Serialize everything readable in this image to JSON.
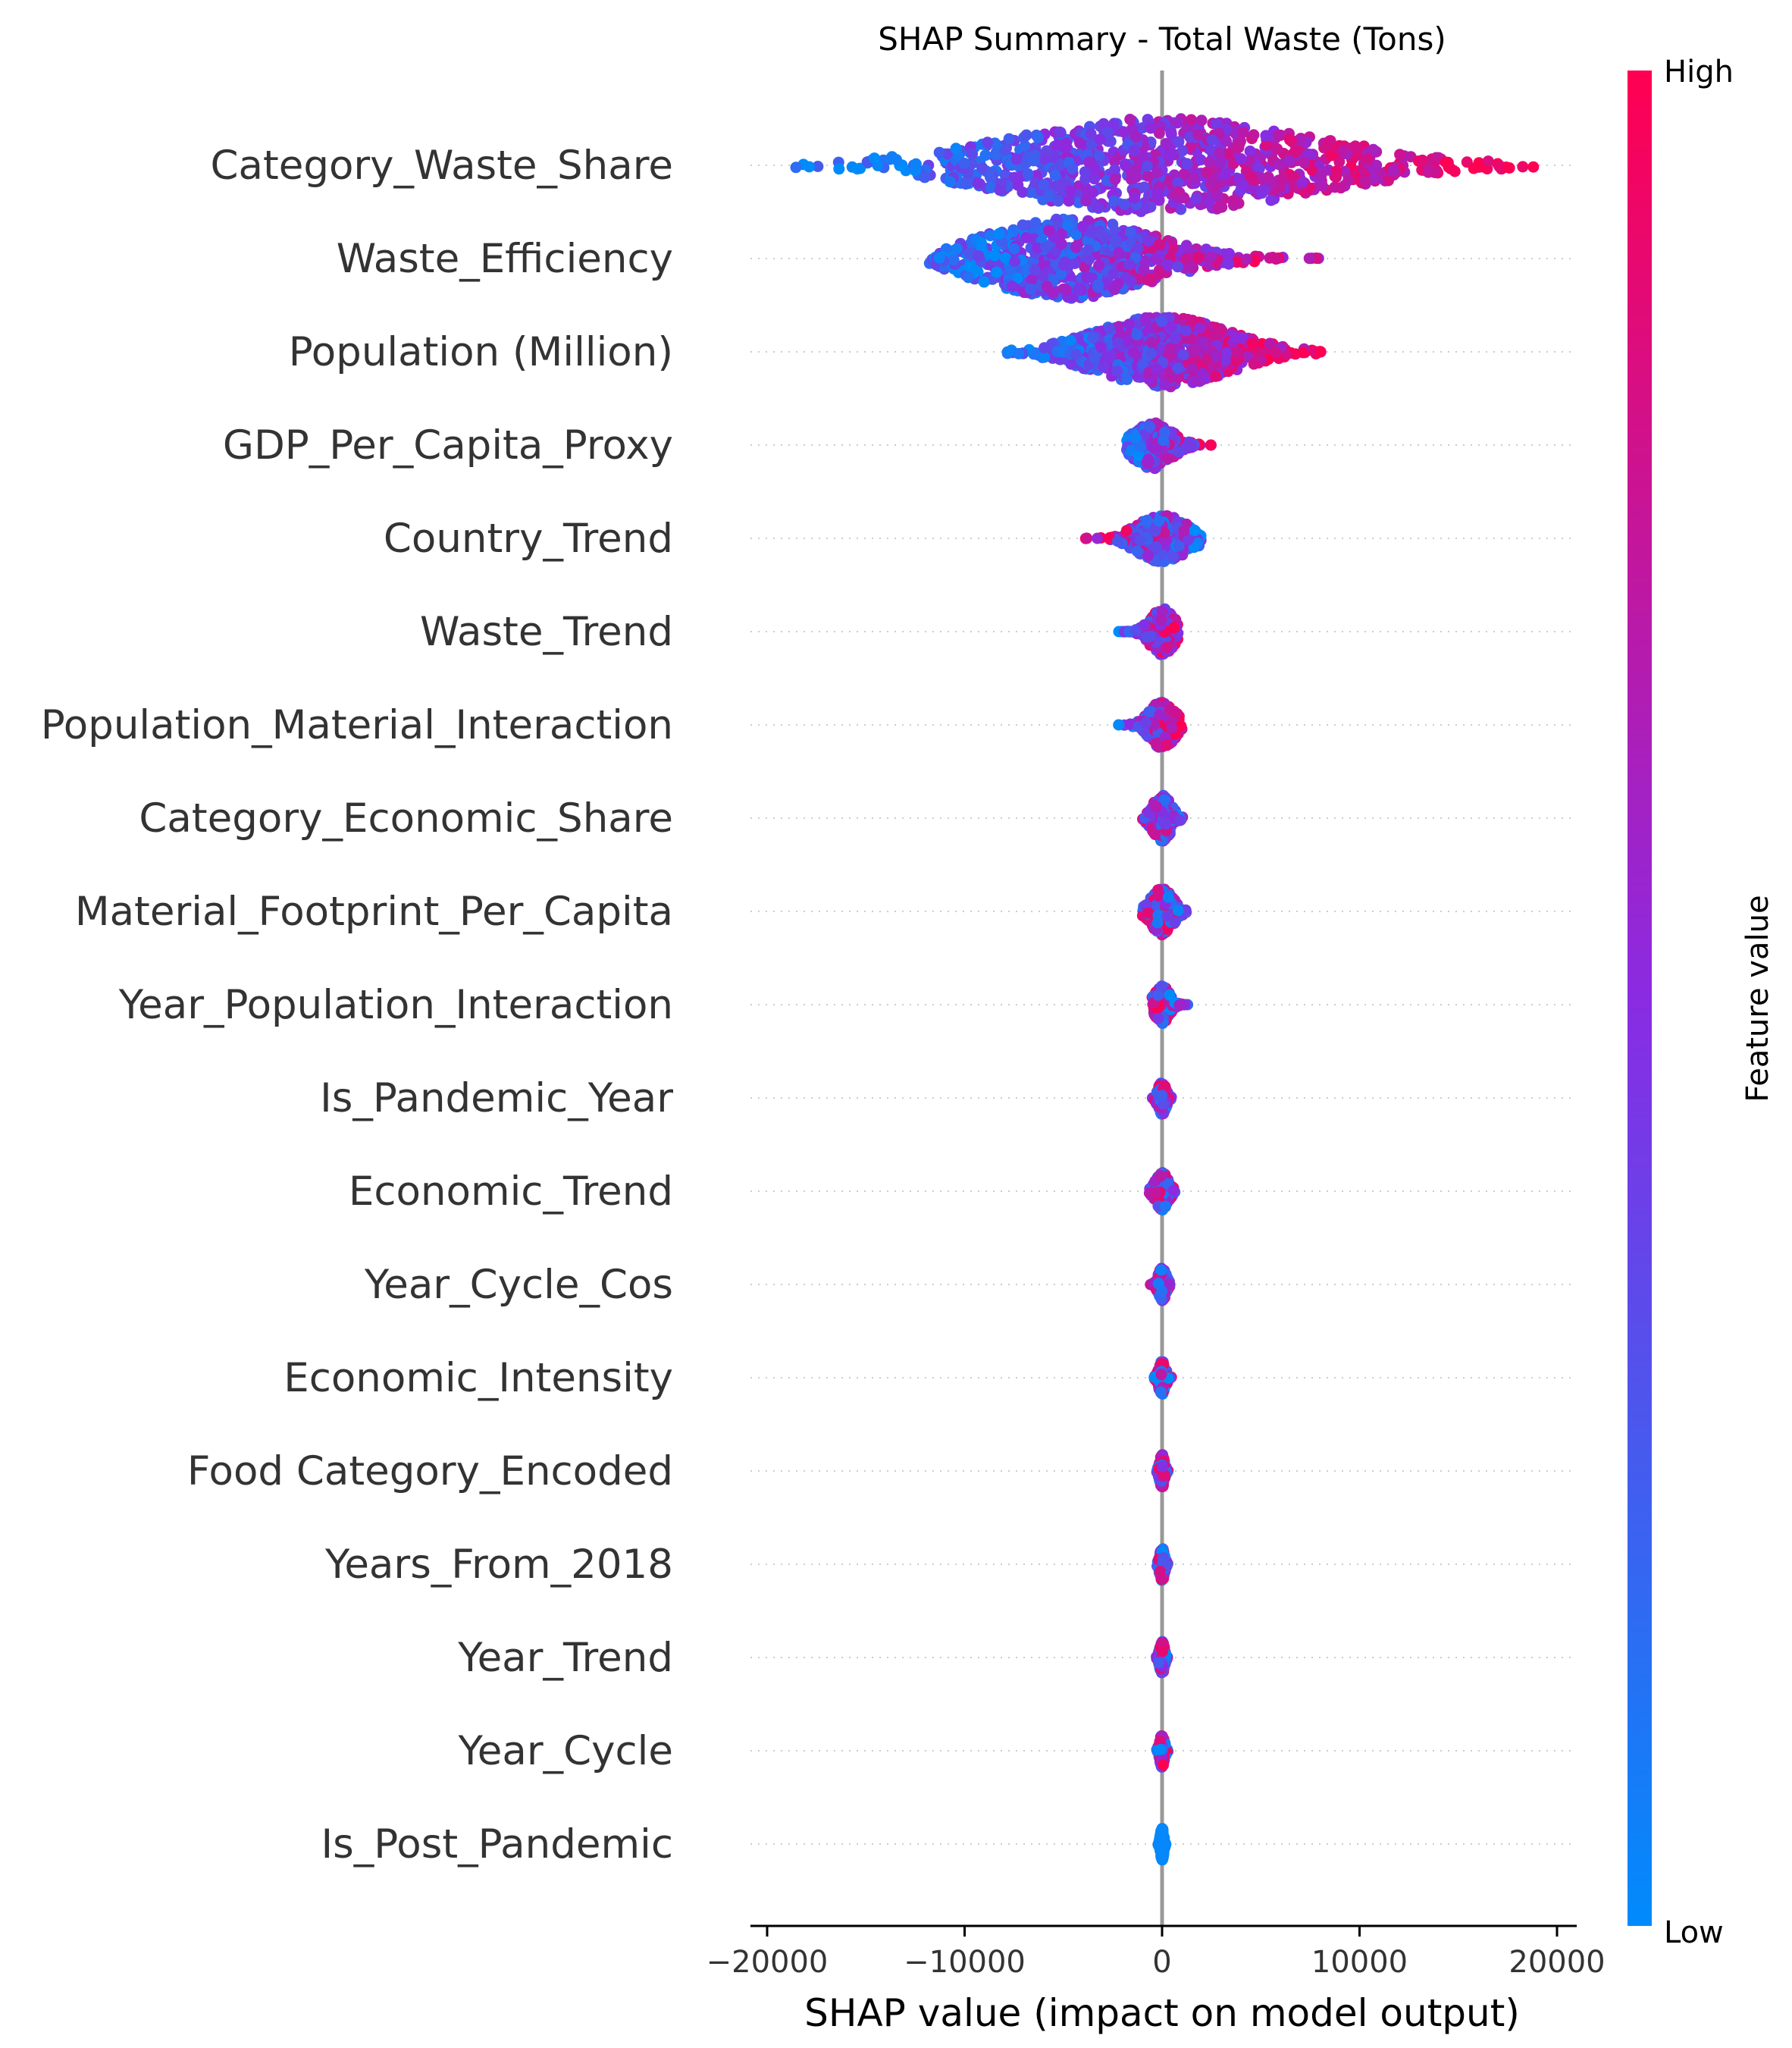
{
  "chart_data": {
    "type": "scatter",
    "subtype": "shap_beeswarm",
    "title": "SHAP Summary - Total Waste (Tons)",
    "xlabel": "SHAP value (impact on model output)",
    "xlim": [
      -21000,
      21000
    ],
    "xticks": [
      -20000,
      -10000,
      0,
      10000,
      20000
    ],
    "xtick_labels": [
      "−20000",
      "−10000",
      "0",
      "10000",
      "20000"
    ],
    "colorbar": {
      "label": "Feature value",
      "high_label": "High",
      "low_label": "Low",
      "low_color": "#008bfb",
      "high_color": "#ff0052",
      "mid_color": "#8a2be2"
    },
    "grid": false,
    "features": [
      {
        "name": "Category_Waste_Share",
        "min": -19500,
        "max": 19000,
        "center": 0,
        "trend": 1.0,
        "width": 1.0,
        "count": 900
      },
      {
        "name": "Waste_Efficiency",
        "min": -11800,
        "max": 9200,
        "center": -4800,
        "trend": 0.8,
        "width": 0.85,
        "count": 700
      },
      {
        "name": "Population (Million)",
        "min": -8200,
        "max": 8200,
        "center": 0,
        "trend": 0.9,
        "width": 0.75,
        "count": 700
      },
      {
        "name": "GDP_Per_Capita_Proxy",
        "min": -1800,
        "max": 3000,
        "center": -500,
        "trend": 0.7,
        "width": 0.5,
        "count": 300
      },
      {
        "name": "Country_Trend",
        "min": -4200,
        "max": 2000,
        "center": 0,
        "trend": -0.5,
        "width": 0.5,
        "count": 300
      },
      {
        "name": "Waste_Trend",
        "min": -2200,
        "max": 800,
        "center": 0,
        "trend": 0.6,
        "width": 0.5,
        "count": 250
      },
      {
        "name": "Population_Material_Interaction",
        "min": -2200,
        "max": 1000,
        "center": 0,
        "trend": 0.7,
        "width": 0.5,
        "count": 250
      },
      {
        "name": "Category_Economic_Share",
        "min": -1200,
        "max": 1100,
        "center": 0,
        "trend": -0.4,
        "width": 0.5,
        "count": 250
      },
      {
        "name": "Material_Footprint_Per_Capita",
        "min": -1000,
        "max": 1700,
        "center": 0,
        "trend": -0.3,
        "width": 0.5,
        "count": 250
      },
      {
        "name": "Year_Population_Interaction",
        "min": -500,
        "max": 1400,
        "center": 0,
        "trend": -0.2,
        "width": 0.4,
        "count": 220
      },
      {
        "name": "Is_Pandemic_Year",
        "min": -500,
        "max": 500,
        "center": 0,
        "trend": -0.3,
        "width": 0.35,
        "count": 200
      },
      {
        "name": "Economic_Trend",
        "min": -700,
        "max": 900,
        "center": 0,
        "trend": 0.3,
        "width": 0.4,
        "count": 200
      },
      {
        "name": "Year_Cycle_Cos",
        "min": -600,
        "max": 400,
        "center": 0,
        "trend": -0.3,
        "width": 0.35,
        "count": 200
      },
      {
        "name": "Economic_Intensity",
        "min": -400,
        "max": 500,
        "center": 0,
        "trend": 0.0,
        "width": 0.35,
        "count": 200
      },
      {
        "name": "Food Category_Encoded",
        "min": -300,
        "max": 300,
        "center": 0,
        "trend": 0.1,
        "width": 0.35,
        "count": 200
      },
      {
        "name": "Years_From_2018",
        "min": -300,
        "max": 300,
        "center": 0,
        "trend": 0.0,
        "width": 0.35,
        "count": 200
      },
      {
        "name": "Year_Trend",
        "min": -300,
        "max": 300,
        "center": 0,
        "trend": 0.0,
        "width": 0.35,
        "count": 200
      },
      {
        "name": "Year_Cycle",
        "min": -300,
        "max": 300,
        "center": 0,
        "trend": 0.0,
        "width": 0.35,
        "count": 200
      },
      {
        "name": "Is_Post_Pandemic",
        "min": -200,
        "max": 200,
        "center": 0,
        "trend": 0.0,
        "width": 0.35,
        "count": 200,
        "constant_color": "low"
      }
    ]
  }
}
